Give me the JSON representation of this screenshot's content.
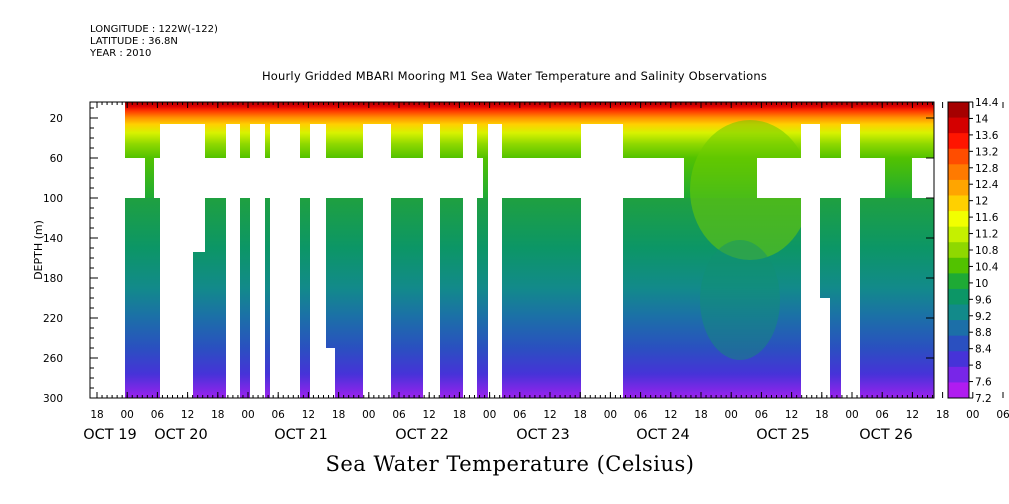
{
  "header": {
    "longitude": "LONGITUDE : 122W(-122)",
    "latitude": "LATITUDE : 36.8N",
    "year": "YEAR : 2010"
  },
  "chart_data": {
    "type": "heatmap",
    "title": "Hourly Gridded MBARI Mooring M1 Sea Water Temperature and Salinity Observations",
    "bottom_title": "Sea Water Temperature (Celsius)",
    "ylabel": "DEPTH (m)",
    "y_ticks": [
      20,
      60,
      100,
      140,
      180,
      220,
      260,
      300
    ],
    "ylim": [
      300,
      4
    ],
    "x_hour_labels": [
      "18",
      "00",
      "06",
      "12",
      "18",
      "00",
      "06",
      "12",
      "18",
      "00",
      "06",
      "12",
      "18",
      "00",
      "06",
      "12",
      "18",
      "00",
      "06",
      "12",
      "18",
      "00",
      "06",
      "12",
      "18",
      "00",
      "06",
      "12",
      "18",
      "00",
      "06",
      "12"
    ],
    "x_day_labels": [
      "OCT 19",
      "OCT 20",
      "OCT 21",
      "OCT 22",
      "OCT 23",
      "OCT 24",
      "OCT 25",
      "OCT 26"
    ],
    "colorbar_labels": [
      "14.4",
      "14",
      "13.6",
      "13.2",
      "12.8",
      "12.4",
      "12",
      "11.6",
      "11.2",
      "10.8",
      "10.4",
      "10",
      "9.6",
      "9.2",
      "8.8",
      "8.4",
      "8",
      "7.6",
      "7.2"
    ],
    "colorbar_colors": [
      "#a50000",
      "#d40000",
      "#ff1500",
      "#ff4d00",
      "#ff7a00",
      "#ffa500",
      "#ffd000",
      "#f2ff00",
      "#c5f000",
      "#8fd800",
      "#52c200",
      "#1eaa35",
      "#0c9666",
      "#128a8a",
      "#1c6fa8",
      "#2a50c0",
      "#4633d8",
      "#7826e8",
      "#b01cf0"
    ],
    "temperature_range": [
      7.2,
      14.4
    ]
  }
}
